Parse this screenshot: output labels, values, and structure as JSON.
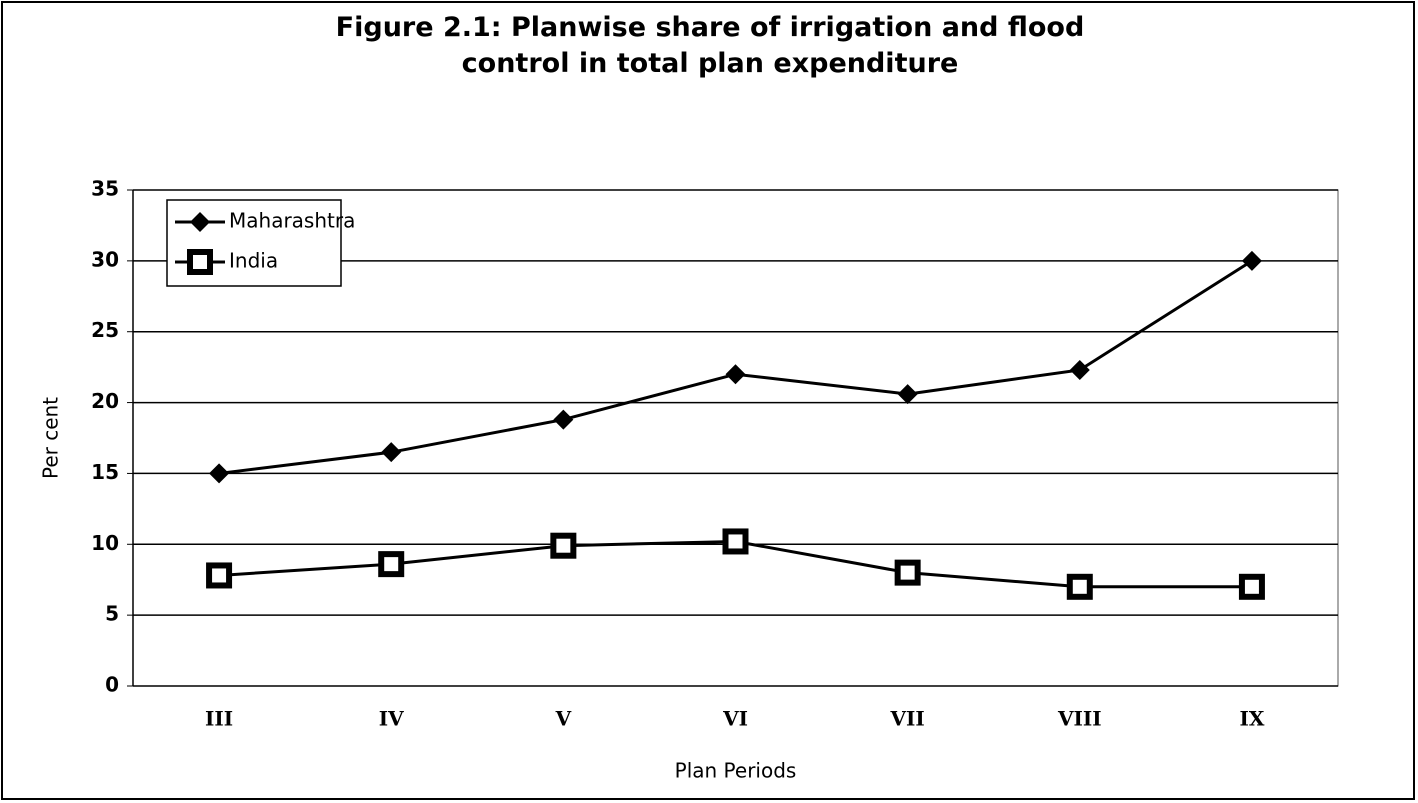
{
  "chart_data": {
    "type": "line",
    "title": "Figure 2.1: Planwise share of irrigation and flood control in total plan expenditure",
    "x_label": "Plan Periods",
    "y_label": "Per cent",
    "categories": [
      "III",
      "IV",
      "V",
      "VI",
      "VII",
      "VIII",
      "IX"
    ],
    "series": [
      {
        "name": "Maharashtra",
        "color": "#000000",
        "marker": "diamond",
        "values": [
          15,
          16.5,
          18.8,
          22,
          20.6,
          22.3,
          30
        ]
      },
      {
        "name": "India",
        "color": "#000000",
        "marker": "square",
        "values": [
          7.8,
          8.6,
          9.9,
          10.2,
          8.0,
          7.0,
          7.0
        ]
      }
    ],
    "ylim": [
      0,
      35
    ],
    "yticks": [
      0,
      5,
      10,
      15,
      20,
      25,
      30,
      35
    ],
    "grid": true,
    "legend": "upper left"
  }
}
